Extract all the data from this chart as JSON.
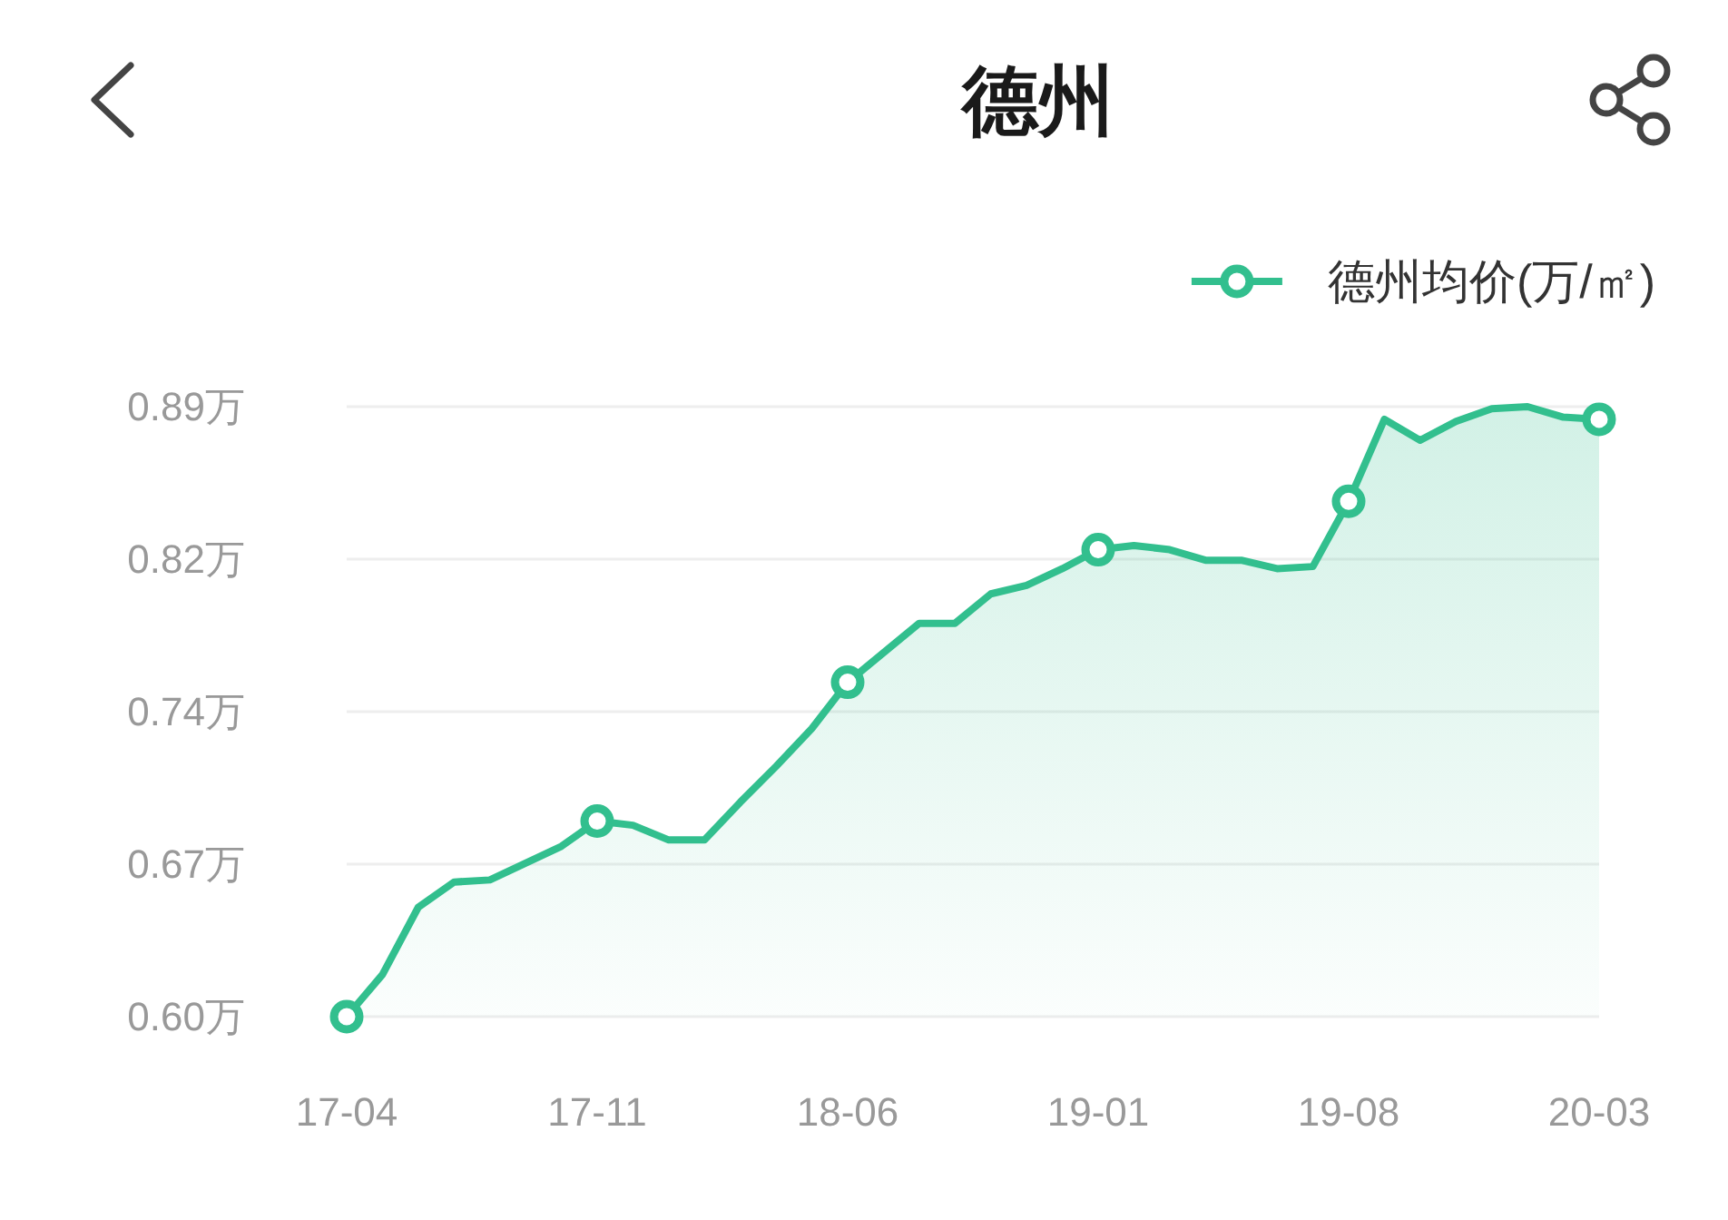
{
  "chart_data": {
    "type": "area",
    "title": "德州",
    "categories": [
      "17-04",
      null,
      null,
      null,
      null,
      null,
      null,
      "17-11",
      null,
      null,
      null,
      null,
      null,
      null,
      "18-06",
      null,
      null,
      null,
      null,
      null,
      null,
      "19-01",
      null,
      null,
      null,
      null,
      null,
      null,
      "19-08",
      null,
      null,
      null,
      null,
      null,
      null,
      "20-03"
    ],
    "series": [
      {
        "name": "德州均价(万/㎡)",
        "color": "#32bf8e",
        "values": [
          0.6,
          0.62,
          0.652,
          0.664,
          0.665,
          0.673,
          0.681,
          0.693,
          0.691,
          0.684,
          0.684,
          0.702,
          0.719,
          0.737,
          0.759,
          0.773,
          0.787,
          0.787,
          0.801,
          0.805,
          0.813,
          0.822,
          0.824,
          0.822,
          0.817,
          0.817,
          0.813,
          0.814,
          0.845,
          0.884,
          0.874,
          0.883,
          0.889,
          0.89,
          0.885,
          0.884
        ]
      },
      {
        "type": "scatter",
        "marker": "circle",
        "color": "#32bf8e",
        "x": [
          "17-04",
          "17-11",
          "18-06",
          "19-01",
          "19-08",
          "20-03"
        ],
        "values": [
          0.6,
          0.693,
          0.759,
          0.822,
          0.845,
          0.884
        ]
      }
    ],
    "ylim": [
      0.6,
      0.89
    ],
    "yticks": [
      {
        "value": 0.6,
        "label": "0.60万"
      },
      {
        "value": 0.6725,
        "label": "0.67万"
      },
      {
        "value": 0.745,
        "label": "0.74万"
      },
      {
        "value": 0.8175,
        "label": "0.82万"
      },
      {
        "value": 0.89,
        "label": "0.89万"
      }
    ],
    "grid": "y",
    "legend": "top right"
  }
}
